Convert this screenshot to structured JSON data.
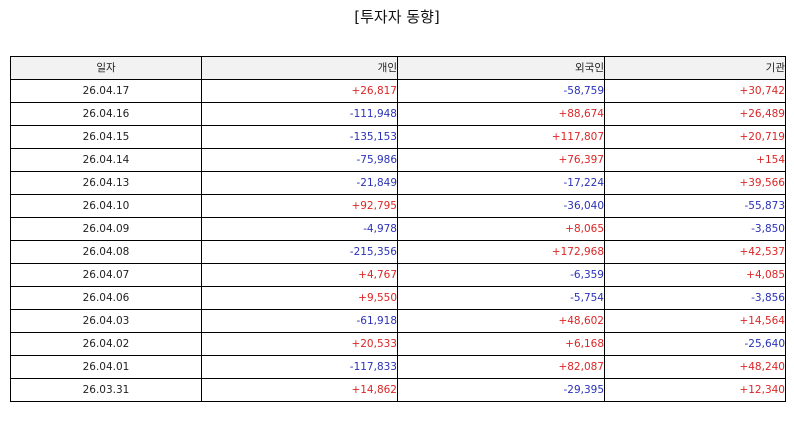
{
  "title": "[투자자 동향]",
  "columns": [
    "일자",
    "개인",
    "외국인",
    "기관"
  ],
  "colors": {
    "positive": "#dc2626",
    "negative": "#2a32b8",
    "header_bg": "#f2f2f2"
  },
  "rows": [
    {
      "date": "26.04.17",
      "individual": "+26,817",
      "foreign": "-58,759",
      "institution": "+30,742"
    },
    {
      "date": "26.04.16",
      "individual": "-111,948",
      "foreign": "+88,674",
      "institution": "+26,489"
    },
    {
      "date": "26.04.15",
      "individual": "-135,153",
      "foreign": "+117,807",
      "institution": "+20,719"
    },
    {
      "date": "26.04.14",
      "individual": "-75,986",
      "foreign": "+76,397",
      "institution": "+154"
    },
    {
      "date": "26.04.13",
      "individual": "-21,849",
      "foreign": "-17,224",
      "institution": "+39,566"
    },
    {
      "date": "26.04.10",
      "individual": "+92,795",
      "foreign": "-36,040",
      "institution": "-55,873"
    },
    {
      "date": "26.04.09",
      "individual": "-4,978",
      "foreign": "+8,065",
      "institution": "-3,850"
    },
    {
      "date": "26.04.08",
      "individual": "-215,356",
      "foreign": "+172,968",
      "institution": "+42,537"
    },
    {
      "date": "26.04.07",
      "individual": "+4,767",
      "foreign": "-6,359",
      "institution": "+4,085"
    },
    {
      "date": "26.04.06",
      "individual": "+9,550",
      "foreign": "-5,754",
      "institution": "-3,856"
    },
    {
      "date": "26.04.03",
      "individual": "-61,918",
      "foreign": "+48,602",
      "institution": "+14,564"
    },
    {
      "date": "26.04.02",
      "individual": "+20,533",
      "foreign": "+6,168",
      "institution": "-25,640"
    },
    {
      "date": "26.04.01",
      "individual": "-117,833",
      "foreign": "+82,087",
      "institution": "+48,240"
    },
    {
      "date": "26.03.31",
      "individual": "+14,862",
      "foreign": "-29,395",
      "institution": "+12,340"
    }
  ]
}
